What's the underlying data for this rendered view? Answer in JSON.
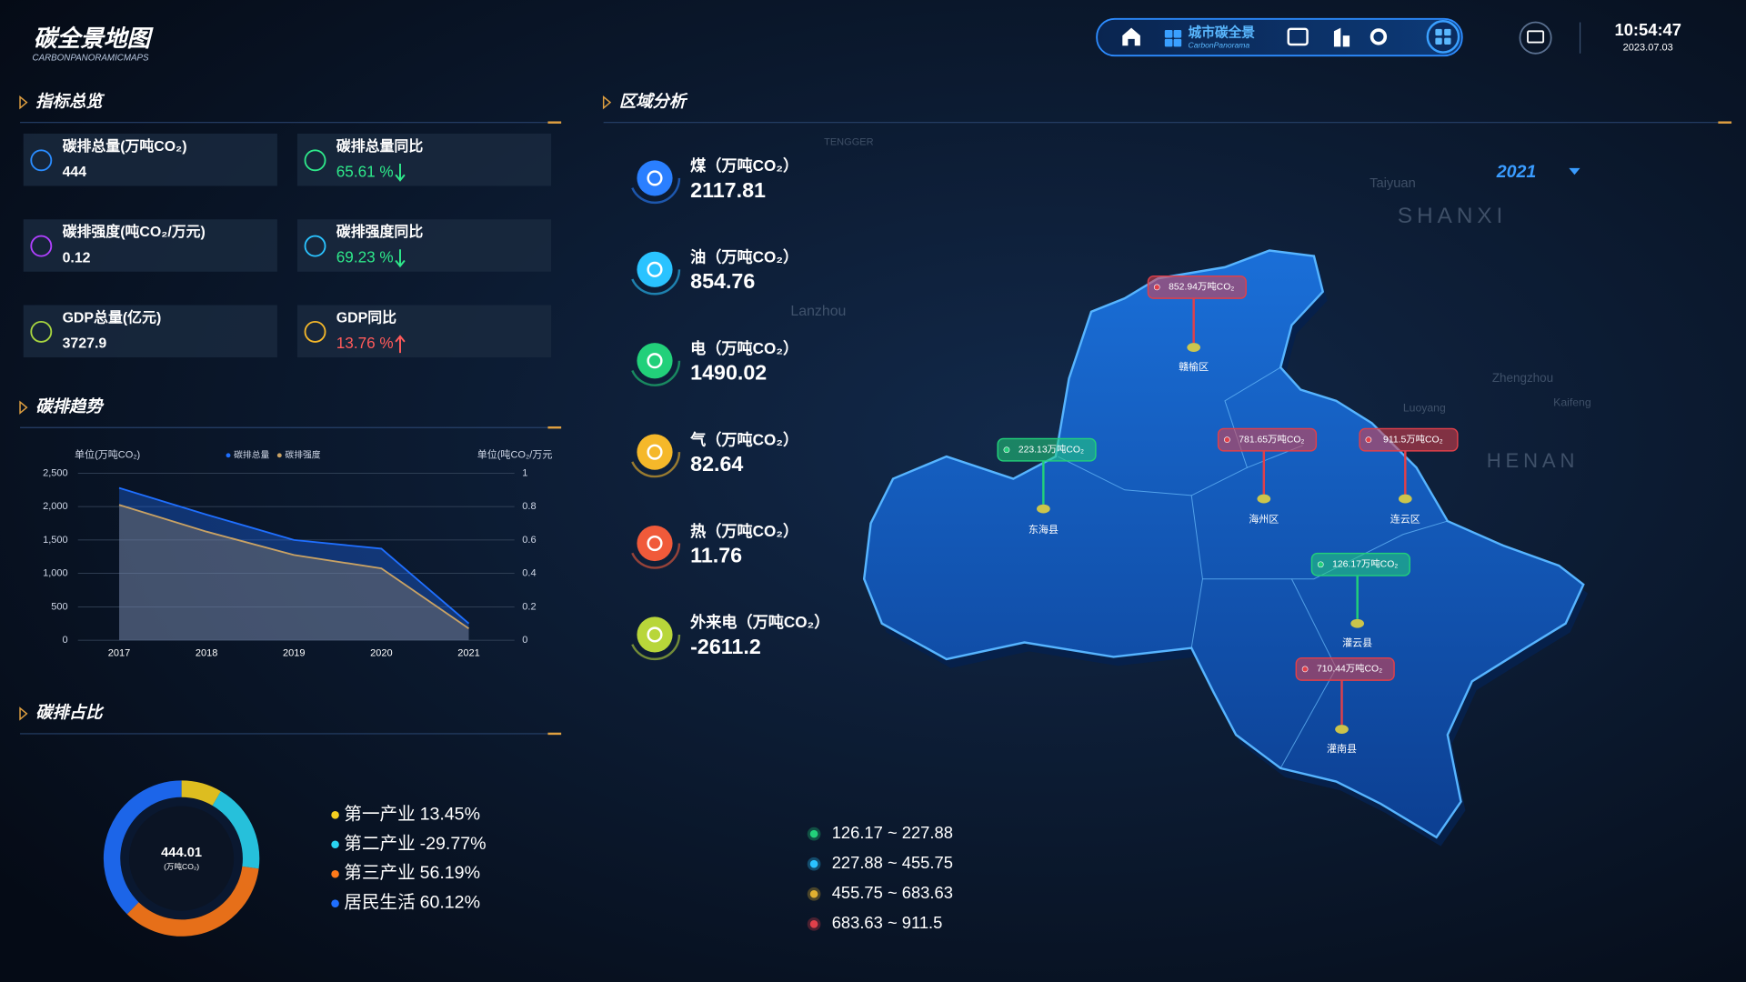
{
  "header": {
    "title": "碳全景地图",
    "subtitle": "CARBONPANORAMICMAPS",
    "nav_active": "城市碳全景",
    "nav_active_sub": "CarbonPanorama",
    "time": "10:54:47",
    "date": "2023.07.03"
  },
  "indicators": {
    "title": "指标总览",
    "items": [
      {
        "label": "碳排总量(万吨CO₂)",
        "value": "444",
        "color": "#ffffff"
      },
      {
        "label": "碳排总量同比",
        "value": "65.61 %",
        "color": "#2ee88a",
        "trend": "down"
      },
      {
        "label": "碳排强度(吨CO₂/万元)",
        "value": "0.12",
        "color": "#ffffff"
      },
      {
        "label": "碳排强度同比",
        "value": "69.23 %",
        "color": "#2ee88a",
        "trend": "down"
      },
      {
        "label": "GDP总量(亿元)",
        "value": "3727.9",
        "color": "#ffffff"
      },
      {
        "label": "GDP同比",
        "value": "13.76 %",
        "color": "#ff5a5a",
        "trend": "up"
      }
    ]
  },
  "trend": {
    "title": "碳排趋势",
    "type": "line",
    "y_label": "单位(万吨CO₂)",
    "y2_label": "单位(吨CO₂/万元",
    "categories": [
      "2017",
      "2018",
      "2019",
      "2020",
      "2021"
    ],
    "ylim": [
      0,
      2500
    ],
    "yticks": [
      0,
      500,
      {
        "value": 1000,
        "label": "1,000"
      },
      {
        "value": 1500,
        "label": "1,500"
      },
      {
        "value": 2000,
        "label": "2,000"
      },
      {
        "value": 2500,
        "label": "2,500"
      }
    ],
    "y2lim": [
      0,
      1
    ],
    "y2ticks": [
      0,
      0.2,
      0.4,
      0.6,
      0.8,
      1
    ],
    "grid": true,
    "series": [
      {
        "name": "碳排总量",
        "color": "#1f6fff",
        "values": [
          2280,
          1880,
          1500,
          1370,
          250
        ]
      },
      {
        "name": "碳排强度",
        "color": "#c9a264",
        "axis": "y2",
        "values": [
          0.81,
          0.65,
          0.51,
          0.43,
          0.07
        ]
      }
    ]
  },
  "share": {
    "title": "碳排占比",
    "type": "pie",
    "center_value": "444.01",
    "center_unit": "(万吨CO₂)",
    "categories": [
      "第一产业",
      "第二产业",
      "第三产业",
      "居民生活"
    ],
    "values": [
      13.45,
      -29.77,
      56.19,
      60.12
    ],
    "value_labels": [
      "13.45%",
      "-29.77%",
      "56.19%",
      "60.12%"
    ],
    "colors": [
      "#f5d020",
      "#2ad4f0",
      "#ff7a1a",
      "#1f6fff"
    ]
  },
  "region": {
    "title": "区域分析",
    "items": [
      {
        "label": "煤（万吨CO₂）",
        "value": 2117.81,
        "color": "#2a7fff"
      },
      {
        "label": "油（万吨CO₂）",
        "value": 854.76,
        "color": "#2ac3ff"
      },
      {
        "label": "电（万吨CO₂）",
        "value": 1490.02,
        "color": "#22d07a"
      },
      {
        "label": "气（万吨CO₂）",
        "value": 82.64,
        "color": "#f5b82a"
      },
      {
        "label": "热（万吨CO₂）",
        "value": 11.76,
        "color": "#f05a3a"
      },
      {
        "label": "外来电（万吨CO₂）",
        "value": -2611.2,
        "color": "#b8d63a"
      }
    ]
  },
  "map": {
    "year": "2021",
    "markers": [
      {
        "name": "赣榆区",
        "label": "852.94万吨CO₂",
        "color": "#e0404a"
      },
      {
        "name": "东海县",
        "label": "223.13万吨CO₂",
        "color": "#22d07a"
      },
      {
        "name": "海州区",
        "label": "781.65万吨CO₂",
        "color": "#e0404a"
      },
      {
        "name": "连云区",
        "label": "911.5万吨CO₂",
        "color": "#e0404a"
      },
      {
        "name": "灌云县",
        "label": "126.17万吨CO₂",
        "color": "#22d07a"
      },
      {
        "name": "灌南县",
        "label": "710.44万吨CO₂",
        "color": "#e0404a"
      }
    ],
    "legend": [
      {
        "label": "126.17 ~ 227.88",
        "color": "#22d07a"
      },
      {
        "label": "227.88 ~ 455.75",
        "color": "#2ac3ff"
      },
      {
        "label": "455.75 ~ 683.63",
        "color": "#e0b030"
      },
      {
        "label": "683.63 ~ 911.5",
        "color": "#e0404a"
      }
    ],
    "background_labels": [
      "TENGGER",
      "Taiyuan",
      "SHANXI",
      "Lanzhou",
      "Zhengzhou",
      "Luoyang",
      "Kaifeng",
      "HENAN"
    ]
  }
}
